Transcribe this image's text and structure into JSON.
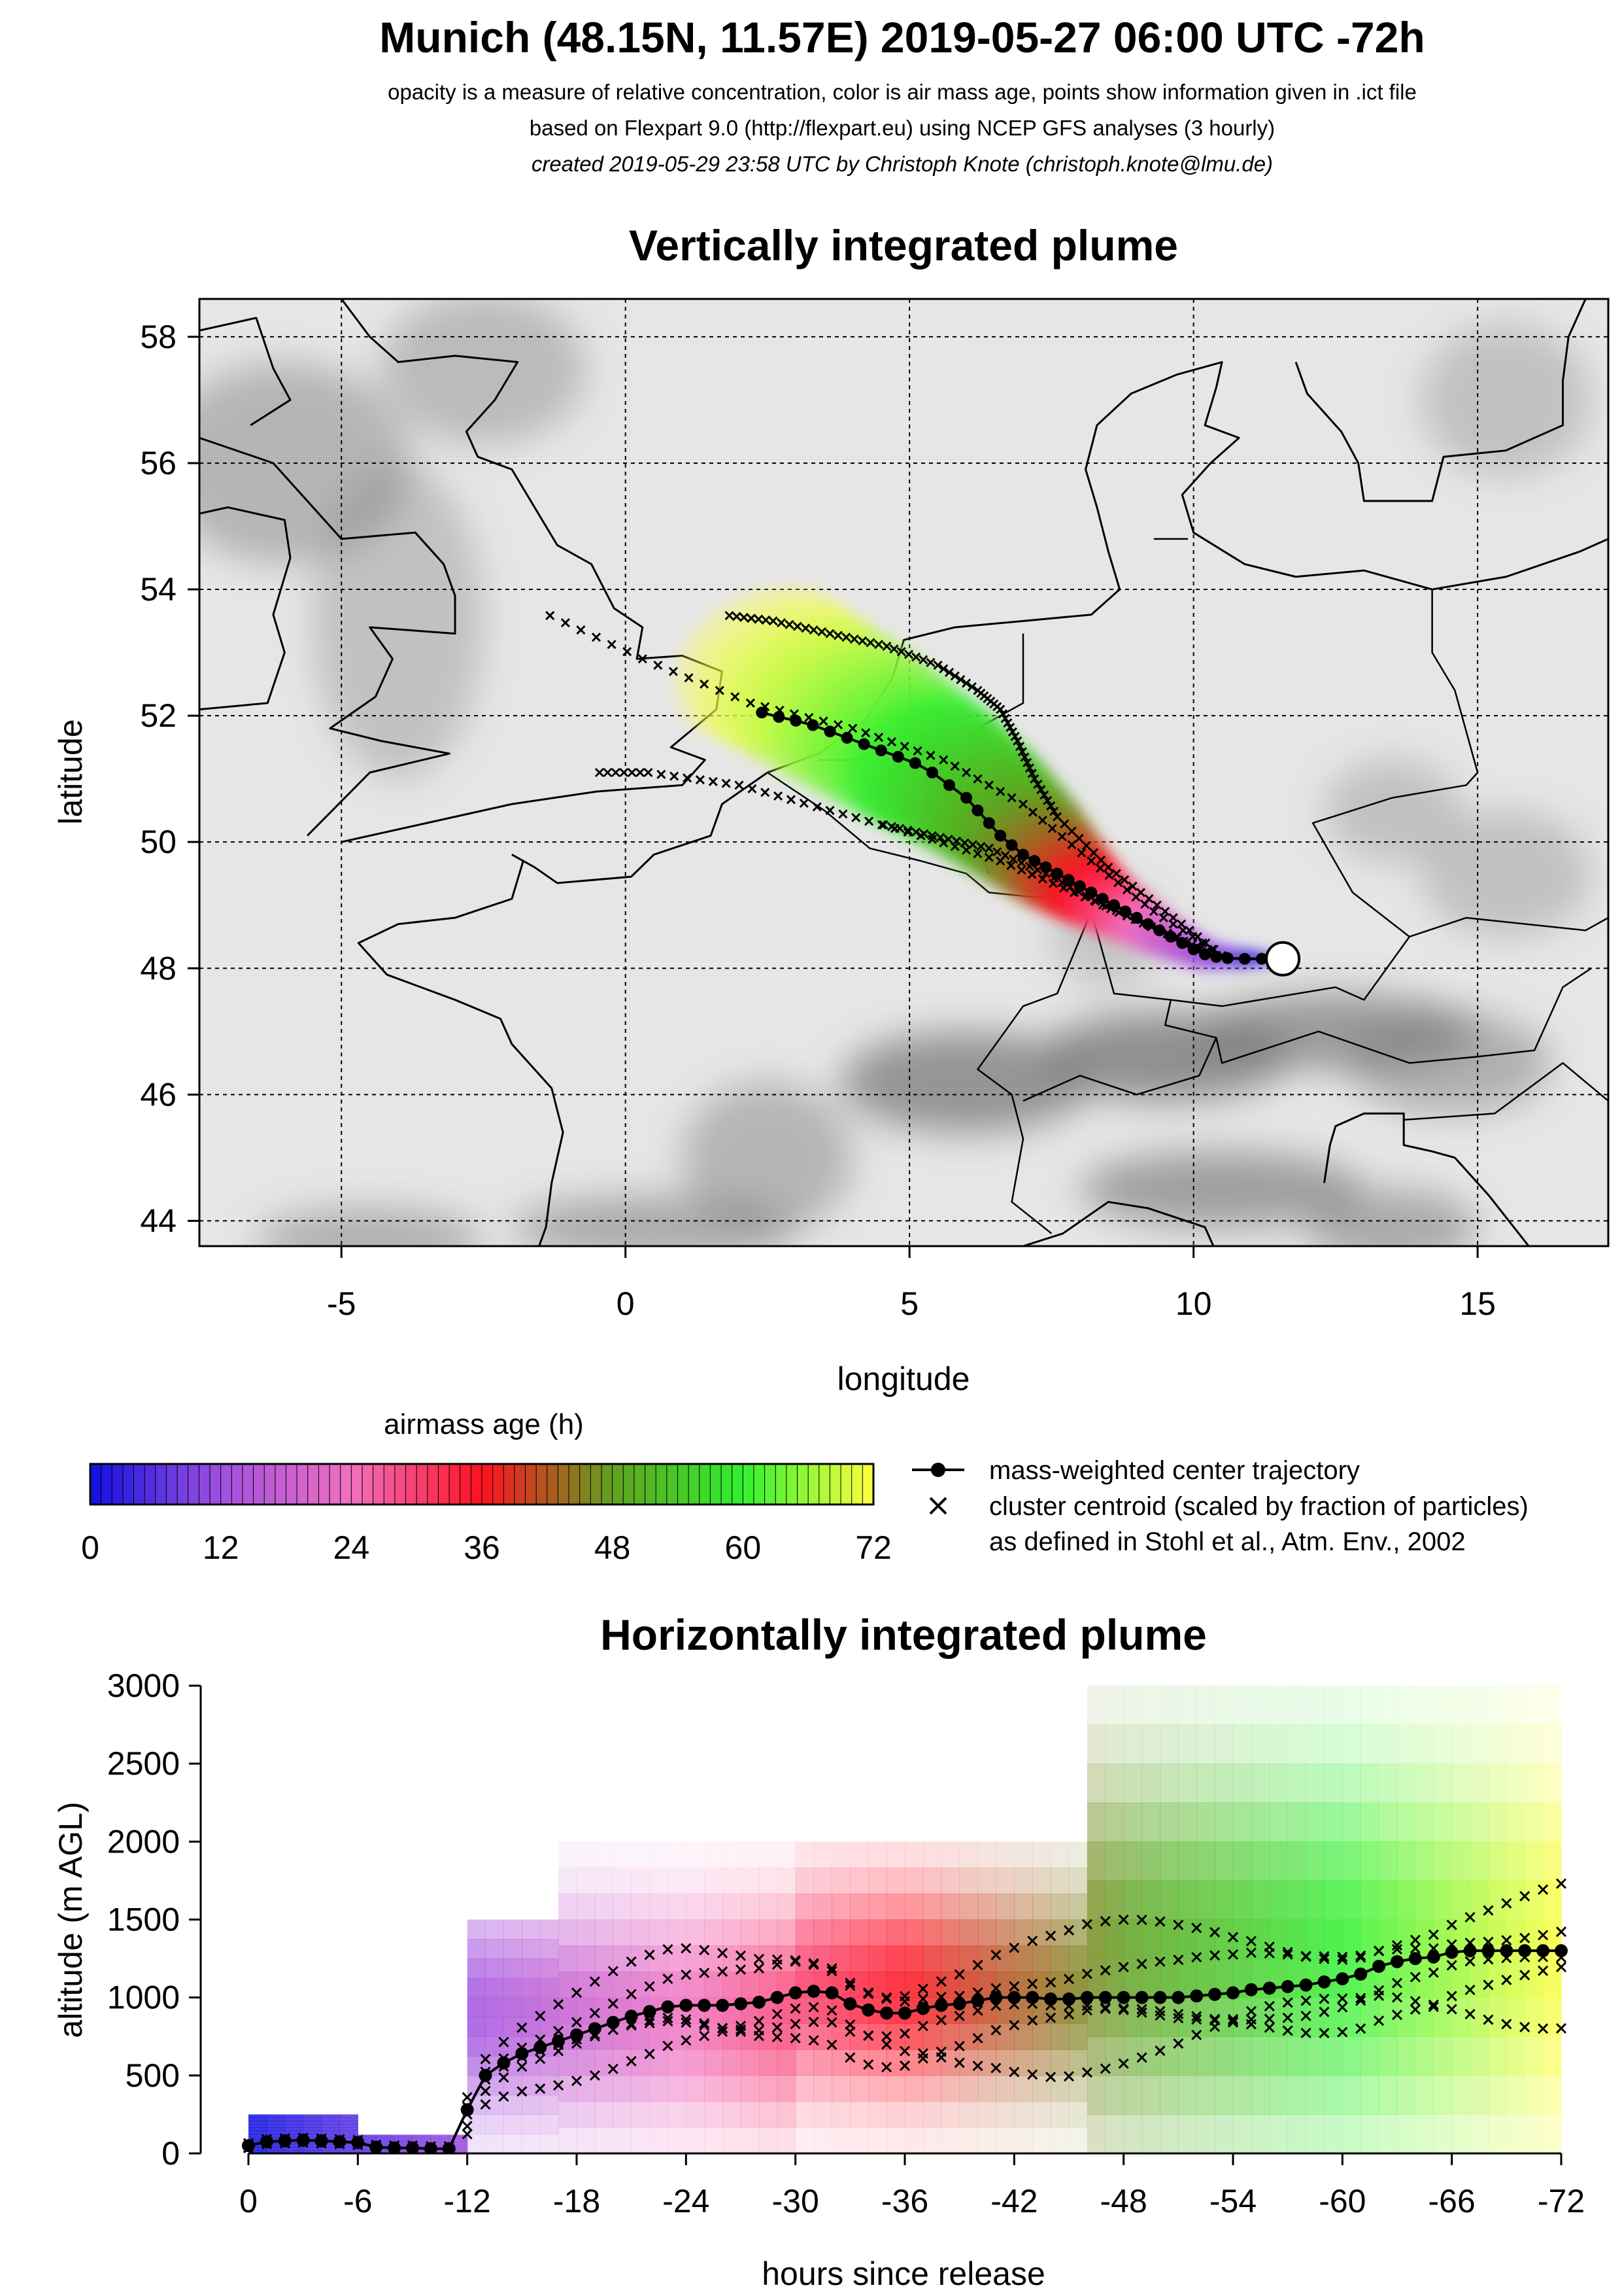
{
  "header": {
    "title": "Munich (48.15N, 11.57E) 2019-05-27 06:00 UTC -72h",
    "line1": "opacity is a measure of relative concentration, color is air mass age, points show information given in .ict file",
    "line2": "based on Flexpart 9.0 (http://flexpart.eu) using NCEP GFS analyses (3 hourly)",
    "line3": "created 2019-05-29 23:58 UTC by Christoph Knote (christoph.knote@lmu.de)"
  },
  "colors": {
    "age_0": "#1010e0",
    "age_12": "#a050e0",
    "age_24": "#f070c0",
    "age_36": "#ff1020",
    "age_48": "#60a020",
    "age_60": "#30f030",
    "age_72": "#ffff40",
    "terrain_light": "#e6e6e6",
    "terrain_dark": "#7a7a7a"
  },
  "map_panel": {
    "title": "Vertically integrated plume",
    "xlabel": "longitude",
    "ylabel": "latitude",
    "xticks": [
      "-5",
      "0",
      "5",
      "10",
      "15"
    ],
    "yticks": [
      "44",
      "46",
      "48",
      "50",
      "52",
      "54",
      "56",
      "58"
    ]
  },
  "colorbar": {
    "label": "airmass age (h)",
    "ticks": [
      "0",
      "12",
      "24",
      "36",
      "48",
      "60",
      "72"
    ]
  },
  "legend": {
    "center_label": "mass-weighted center trajectory",
    "cluster_label": "cluster centroid (scaled by fraction of particles)",
    "cluster_label2": "as defined in Stohl et al., Atm. Env., 2002"
  },
  "altitude_panel": {
    "title": "Horizontally integrated plume",
    "xlabel": "hours since release",
    "ylabel": "altitude (m AGL)",
    "xticks": [
      "0",
      "-6",
      "-12",
      "-18",
      "-24",
      "-30",
      "-36",
      "-42",
      "-48",
      "-54",
      "-60",
      "-66",
      "-72"
    ],
    "yticks": [
      "0",
      "500",
      "1000",
      "1500",
      "2000",
      "2500",
      "3000"
    ]
  },
  "chart_data": [
    {
      "type": "scatter",
      "title": "Vertically integrated plume",
      "xlabel": "longitude",
      "ylabel": "latitude",
      "xlim": [
        -7.5,
        17.3
      ],
      "ylim": [
        43.6,
        58.6
      ],
      "grid": true,
      "release_point": {
        "lon": 11.57,
        "lat": 48.15
      },
      "center_trajectory": {
        "name": "mass-weighted center trajectory",
        "lon": [
          11.57,
          11.2,
          10.9,
          10.6,
          10.4,
          10.2,
          10.0,
          9.8,
          9.6,
          9.4,
          9.2,
          9.0,
          8.8,
          8.6,
          8.4,
          8.2,
          8.0,
          7.8,
          7.6,
          7.4,
          7.2,
          7.0,
          6.8,
          6.6,
          6.4,
          6.2,
          6.0,
          5.7,
          5.4,
          5.1,
          4.8,
          4.5,
          4.2,
          3.9,
          3.6,
          3.3,
          3.0,
          2.7,
          2.4
        ],
        "lat": [
          48.15,
          48.15,
          48.15,
          48.16,
          48.18,
          48.22,
          48.3,
          48.4,
          48.5,
          48.6,
          48.7,
          48.8,
          48.9,
          49.0,
          49.1,
          49.2,
          49.3,
          49.4,
          49.5,
          49.6,
          49.7,
          49.8,
          49.95,
          50.1,
          50.3,
          50.5,
          50.7,
          50.9,
          51.1,
          51.25,
          51.35,
          51.45,
          51.55,
          51.65,
          51.75,
          51.85,
          51.92,
          51.98,
          52.05
        ]
      },
      "cluster_tracks": [
        {
          "lon": [
            10.5,
            9.5,
            8.5,
            7.6,
            7.2,
            6.9,
            6.6,
            6.2,
            5.5,
            4.6,
            3.6,
            2.6,
            1.7
          ],
          "lat": [
            48.2,
            48.9,
            49.6,
            50.4,
            51.0,
            51.6,
            52.1,
            52.4,
            52.8,
            53.1,
            53.3,
            53.5,
            53.6
          ]
        },
        {
          "lon": [
            10.5,
            9.3,
            8.2,
            7.0,
            5.6,
            4.0,
            2.2,
            0.3,
            -1.6
          ],
          "lat": [
            48.2,
            48.9,
            49.7,
            50.6,
            51.3,
            51.8,
            52.2,
            52.9,
            53.7
          ]
        },
        {
          "lon": [
            10.4,
            9.2,
            7.9,
            6.6,
            5.2,
            3.6,
            2.0,
            0.4,
            -0.6
          ],
          "lat": [
            48.2,
            48.7,
            49.2,
            49.7,
            50.1,
            50.5,
            50.9,
            51.1,
            51.1
          ]
        },
        {
          "lon": [
            10.4,
            9.4,
            8.4,
            7.4,
            6.4,
            5.4,
            4.4
          ],
          "lat": [
            48.2,
            48.6,
            49.0,
            49.5,
            49.9,
            50.1,
            50.3
          ]
        }
      ],
      "plume_axis": {
        "age_h": [
          0,
          6,
          12,
          18,
          24,
          30,
          36,
          42,
          48,
          54,
          60,
          66,
          72
        ],
        "lon": [
          11.57,
          10.9,
          10.2,
          9.6,
          9.1,
          8.6,
          8.1,
          7.6,
          7.0,
          6.2,
          5.2,
          4.0,
          2.5
        ],
        "lat": [
          48.15,
          48.15,
          48.2,
          48.45,
          48.7,
          48.95,
          49.25,
          49.6,
          50.1,
          50.7,
          51.3,
          52.0,
          52.8
        ],
        "halfwidth_deg": [
          0.05,
          0.22,
          0.35,
          0.45,
          0.55,
          0.65,
          0.8,
          1.0,
          1.2,
          1.4,
          1.6,
          1.75,
          1.85
        ]
      }
    },
    {
      "type": "line",
      "title": "Horizontally integrated plume",
      "xlabel": "hours since release",
      "ylabel": "altitude (m AGL)",
      "xlim": [
        0,
        -72
      ],
      "ylim": [
        0,
        3000
      ],
      "x": [
        0,
        -1,
        -2,
        -3,
        -4,
        -5,
        -6,
        -7,
        -8,
        -9,
        -10,
        -11,
        -12,
        -13,
        -14,
        -15,
        -16,
        -17,
        -18,
        -19,
        -20,
        -21,
        -22,
        -23,
        -24,
        -25,
        -26,
        -27,
        -28,
        -29,
        -30,
        -31,
        -32,
        -33,
        -34,
        -35,
        -36,
        -37,
        -38,
        -39,
        -40,
        -41,
        -42,
        -43,
        -44,
        -45,
        -46,
        -47,
        -48,
        -49,
        -50,
        -51,
        -52,
        -53,
        -54,
        -55,
        -56,
        -57,
        -58,
        -59,
        -60,
        -61,
        -62,
        -63,
        -64,
        -65,
        -66,
        -67,
        -68,
        -69,
        -70,
        -71,
        -72
      ],
      "series": [
        {
          "name": "mass-weighted center trajectory",
          "values": [
            50,
            75,
            80,
            85,
            80,
            75,
            70,
            40,
            35,
            35,
            30,
            30,
            280,
            500,
            580,
            640,
            680,
            720,
            760,
            800,
            840,
            880,
            910,
            940,
            950,
            950,
            950,
            960,
            970,
            1000,
            1030,
            1040,
            1030,
            960,
            920,
            900,
            900,
            930,
            950,
            960,
            980,
            1000,
            1000,
            1000,
            990,
            990,
            1000,
            1000,
            1000,
            1000,
            1000,
            1000,
            1010,
            1020,
            1030,
            1050,
            1060,
            1070,
            1080,
            1100,
            1120,
            1150,
            1200,
            1230,
            1250,
            1260,
            1290,
            1300,
            1300,
            1300,
            1300,
            1300,
            1300
          ]
        }
      ]
    }
  ]
}
